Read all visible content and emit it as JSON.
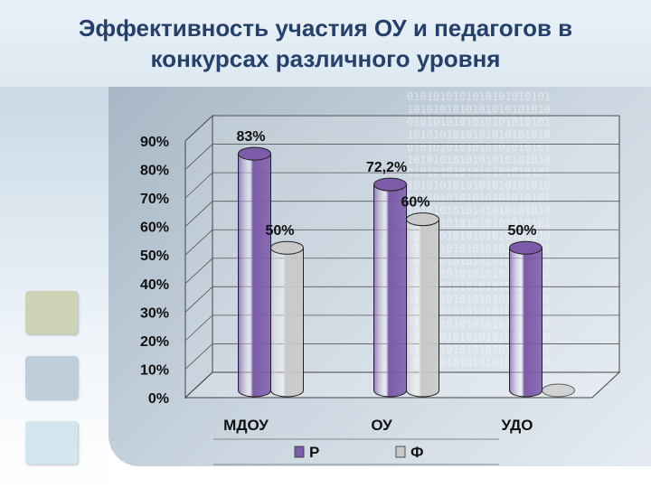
{
  "title_line1": "Эффективность участия ОУ и педагогов в",
  "title_line2": "конкурсах различного уровня",
  "chart_data": {
    "type": "bar",
    "categories": [
      "МДОУ",
      "ОУ",
      "УДО"
    ],
    "series": [
      {
        "name": "Р",
        "values": [
          83,
          72.2,
          50
        ],
        "labels": [
          "83%",
          "72,2%",
          "50%"
        ],
        "color": "#7c5ba8"
      },
      {
        "name": "Ф",
        "values": [
          50,
          60,
          0
        ],
        "labels": [
          "50%",
          "60%",
          ""
        ],
        "color": "#c9c9c9"
      }
    ],
    "y_ticks": [
      "0%",
      "10%",
      "20%",
      "30%",
      "40%",
      "50%",
      "60%",
      "70%",
      "80%",
      "90%"
    ],
    "ylim": [
      0,
      90
    ],
    "legend_position": "bottom"
  },
  "colors": {
    "title": "#24406b",
    "square1": "#cfd3b6",
    "square2": "#bfcfd9",
    "square3": "#d3e6ee"
  }
}
